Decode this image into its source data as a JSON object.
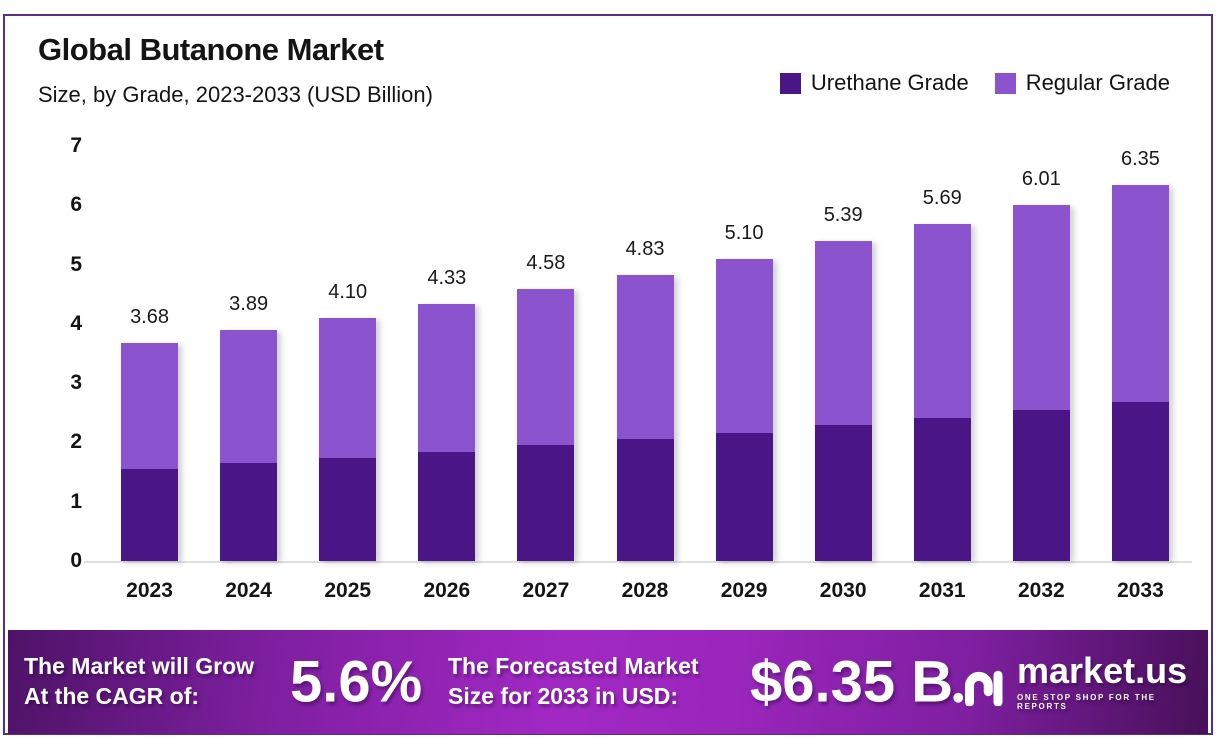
{
  "header": {
    "title": "Global Butanone Market",
    "subtitle": "Size, by Grade, 2023-2033 (USD Billion)"
  },
  "legend": [
    {
      "label": "Urethane Grade",
      "color": "#4A1586"
    },
    {
      "label": "Regular Grade",
      "color": "#8C53CE"
    }
  ],
  "chart_data": {
    "type": "bar",
    "stacked": true,
    "title": "Global Butanone Market",
    "subtitle": "Size, by Grade, 2023-2033 (USD Billion)",
    "xlabel": "",
    "ylabel": "",
    "ylim": [
      0,
      7
    ],
    "yticks": [
      0,
      1,
      2,
      3,
      4,
      5,
      6,
      7
    ],
    "grid": false,
    "legend_position": "top-right",
    "categories": [
      "2023",
      "2024",
      "2025",
      "2026",
      "2027",
      "2028",
      "2029",
      "2030",
      "2031",
      "2032",
      "2033"
    ],
    "series": [
      {
        "name": "Urethane Grade",
        "color": "#4A1586",
        "values": [
          1.56,
          1.66,
          1.74,
          1.84,
          1.95,
          2.05,
          2.16,
          2.29,
          2.41,
          2.55,
          2.69
        ]
      },
      {
        "name": "Regular Grade",
        "color": "#8C53CE",
        "values": [
          2.12,
          2.23,
          2.36,
          2.49,
          2.63,
          2.78,
          2.94,
          3.1,
          3.28,
          3.46,
          3.66
        ]
      }
    ],
    "totals": [
      3.68,
      3.89,
      4.1,
      4.33,
      4.58,
      4.83,
      5.1,
      5.39,
      5.69,
      6.01,
      6.35
    ],
    "total_labels": [
      "3.68",
      "3.89",
      "4.10",
      "4.33",
      "4.58",
      "4.83",
      "5.10",
      "5.39",
      "5.69",
      "6.01",
      "6.35"
    ]
  },
  "banner": {
    "cagr_label_line1": "The Market will Grow",
    "cagr_label_line2": "At the CAGR of:",
    "cagr_value": "5.6%",
    "forecast_label_line1": "The Forecasted Market",
    "forecast_label_line2": "Size for 2033 in USD:",
    "forecast_value": "$6.35 B",
    "logo_text": "market.us",
    "logo_tagline": "ONE STOP SHOP FOR THE REPORTS"
  },
  "colors": {
    "frame_border": "#5B2C87",
    "urethane": "#4A1586",
    "regular": "#8C53CE",
    "baseline": "#DFDFDF",
    "banner_center": "#A228C4",
    "banner_edge": "#4E1367",
    "text": "#141414"
  }
}
